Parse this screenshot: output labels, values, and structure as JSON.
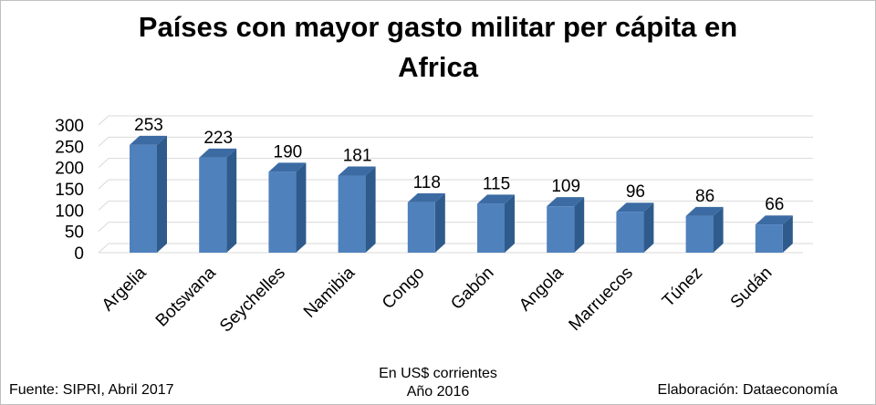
{
  "chart_data": {
    "type": "bar",
    "title_line1": "Países con mayor gasto militar per cápita en",
    "title_line2": "Africa",
    "categories": [
      "Argelia",
      "Botswana",
      "Seychelles",
      "Namibia",
      "Congo",
      "Gabón",
      "Angola",
      "Marruecos",
      "Túnez",
      "Sudán"
    ],
    "values": [
      253,
      223,
      190,
      181,
      118,
      115,
      109,
      96,
      86,
      66
    ],
    "ylim": [
      0,
      300
    ],
    "yticks": [
      0,
      50,
      100,
      150,
      200,
      250,
      300
    ],
    "grid": true,
    "bar_color": "#4f81bd",
    "bar_side_color": "#2e5b8c",
    "bar_top_color": "#3c6ba3"
  },
  "footer": {
    "source": "Fuente: SIPRI, Abril 2017",
    "units": "En US$ corrientes",
    "year": "Año 2016",
    "credit": "Elaboración: Dataeconomía"
  }
}
